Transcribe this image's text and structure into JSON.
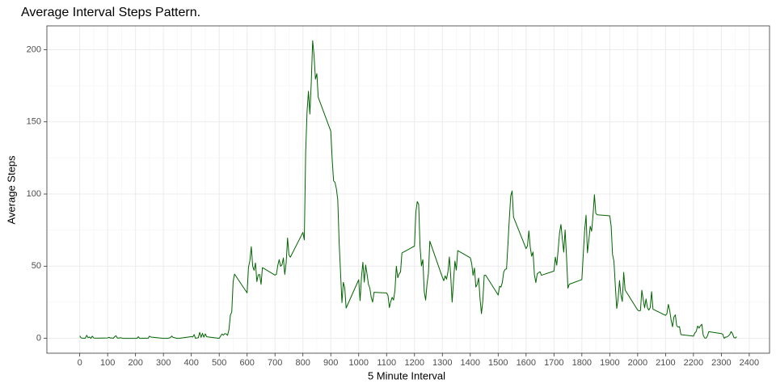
{
  "chart_data": {
    "type": "line",
    "title": "Average Interval Steps Pattern.",
    "x_label": "5 Minute Interval",
    "y_label": "Average Steps",
    "x": [
      0,
      5,
      10,
      15,
      20,
      25,
      30,
      35,
      40,
      45,
      50,
      55,
      100,
      105,
      110,
      115,
      120,
      125,
      130,
      135,
      140,
      145,
      150,
      155,
      200,
      205,
      210,
      215,
      220,
      225,
      230,
      235,
      240,
      245,
      250,
      255,
      300,
      305,
      310,
      315,
      320,
      325,
      330,
      335,
      340,
      345,
      350,
      355,
      400,
      405,
      410,
      415,
      420,
      425,
      430,
      435,
      440,
      445,
      450,
      455,
      500,
      505,
      510,
      515,
      520,
      525,
      530,
      535,
      540,
      545,
      550,
      555,
      600,
      605,
      610,
      615,
      620,
      625,
      630,
      635,
      640,
      645,
      650,
      655,
      700,
      705,
      710,
      715,
      720,
      725,
      730,
      735,
      740,
      745,
      750,
      755,
      800,
      805,
      810,
      815,
      820,
      825,
      830,
      835,
      840,
      845,
      850,
      855,
      900,
      905,
      910,
      915,
      920,
      925,
      930,
      935,
      940,
      945,
      950,
      955,
      1000,
      1005,
      1010,
      1015,
      1020,
      1025,
      1030,
      1035,
      1040,
      1045,
      1050,
      1055,
      1100,
      1105,
      1110,
      1115,
      1120,
      1125,
      1130,
      1135,
      1140,
      1145,
      1150,
      1155,
      1200,
      1205,
      1210,
      1215,
      1220,
      1225,
      1230,
      1235,
      1240,
      1245,
      1250,
      1255,
      1300,
      1305,
      1310,
      1315,
      1320,
      1325,
      1330,
      1335,
      1340,
      1345,
      1350,
      1355,
      1400,
      1405,
      1410,
      1415,
      1420,
      1425,
      1430,
      1435,
      1440,
      1445,
      1450,
      1455,
      1500,
      1505,
      1510,
      1515,
      1520,
      1525,
      1530,
      1535,
      1540,
      1545,
      1550,
      1555,
      1600,
      1605,
      1610,
      1615,
      1620,
      1625,
      1630,
      1635,
      1640,
      1645,
      1650,
      1655,
      1700,
      1705,
      1710,
      1715,
      1720,
      1725,
      1730,
      1735,
      1740,
      1745,
      1750,
      1755,
      1800,
      1805,
      1810,
      1815,
      1820,
      1825,
      1830,
      1835,
      1840,
      1845,
      1850,
      1855,
      1900,
      1905,
      1910,
      1915,
      1920,
      1925,
      1930,
      1935,
      1940,
      1945,
      1950,
      1955,
      2000,
      2005,
      2010,
      2015,
      2020,
      2025,
      2030,
      2035,
      2040,
      2045,
      2050,
      2055,
      2100,
      2105,
      2110,
      2115,
      2120,
      2125,
      2130,
      2135,
      2140,
      2145,
      2150,
      2155,
      2200,
      2205,
      2210,
      2215,
      2220,
      2225,
      2230,
      2235,
      2240,
      2245,
      2250,
      2255,
      2300,
      2305,
      2310,
      2315,
      2320,
      2325,
      2330,
      2335,
      2340,
      2345,
      2350,
      2355
    ],
    "series": [
      {
        "color": "#006400",
        "values": [
          1.7,
          0.3,
          0.1,
          0.15,
          0.08,
          2.1,
          0.5,
          0.9,
          0,
          1.5,
          0.3,
          0.1,
          0.3,
          0.7,
          0.2,
          0.3,
          0,
          1.1,
          1.8,
          0.2,
          0.2,
          0.4,
          0.3,
          0,
          0,
          0,
          1.1,
          0,
          0,
          0.1,
          0,
          0.2,
          0,
          0,
          1.5,
          0.9,
          0,
          0,
          0,
          0,
          0.2,
          0.6,
          1.6,
          0.6,
          0.5,
          0.1,
          0,
          0,
          1.2,
          0.9,
          2.6,
          0,
          0.3,
          0.4,
          4.1,
          0.7,
          3.5,
          0.8,
          3.1,
          1.1,
          0,
          1.6,
          3,
          2.2,
          3.3,
          3,
          2.1,
          6.1,
          16,
          18.3,
          39.5,
          44.5,
          31.5,
          49.3,
          53.8,
          63.5,
          50,
          47.1,
          52.2,
          39.3,
          44,
          44.2,
          37.4,
          49,
          43.8,
          44.4,
          50.5,
          54.5,
          49.9,
          51,
          55.7,
          44.3,
          52.3,
          69.5,
          57.8,
          56.2,
          73.4,
          68.2,
          129.4,
          157.5,
          171.2,
          155.4,
          177.3,
          206.2,
          195.9,
          179.6,
          183.4,
          167,
          143.5,
          124,
          109.1,
          108.1,
          103.7,
          96,
          66.2,
          45.2,
          24.8,
          38.8,
          35,
          21,
          40.6,
          26.1,
          42.4,
          52.7,
          38.9,
          50.8,
          44.3,
          37.4,
          34.7,
          28.3,
          25.1,
          31.9,
          31.4,
          29.7,
          21.3,
          25.5,
          28.4,
          26.5,
          33.4,
          50,
          42,
          44.6,
          46,
          59.2,
          63.9,
          87.7,
          94.8,
          92.8,
          63.4,
          50.2,
          54.5,
          32.4,
          26.5,
          37.7,
          45.1,
          67.3,
          42.3,
          39.9,
          43.3,
          41,
          46.2,
          56.4,
          42.8,
          25.1,
          40,
          53.5,
          47.3,
          60.8,
          55.8,
          52,
          43.6,
          48.7,
          35.5,
          37.5,
          41.8,
          27.5,
          17.1,
          26.1,
          43.6,
          43.8,
          30,
          36.1,
          35.5,
          38.8,
          46,
          47.8,
          48.1,
          65.3,
          82.9,
          98.7,
          102.1,
          84,
          62.1,
          64.1,
          74.5,
          63.2,
          56.9,
          59.8,
          43.9,
          38.6,
          44.7,
          45.5,
          46.2,
          43.7,
          46.6,
          56.3,
          50.7,
          61.2,
          73,
          78.9,
          68.9,
          59.7,
          75.1,
          56.5,
          34.8,
          37.5,
          40.7,
          58,
          74.7,
          85.3,
          59.3,
          67.8,
          77.7,
          74.2,
          85.3,
          99.5,
          86.6,
          85.6,
          84.9,
          77.8,
          58,
          53.4,
          36.3,
          20.7,
          27.4,
          40,
          30.2,
          25.5,
          45.7,
          33.5,
          19.6,
          19,
          19.3,
          33.3,
          26.8,
          21.2,
          27.3,
          21.3,
          19.5,
          21.3,
          32.3,
          20.2,
          15.9,
          17.2,
          23.5,
          19.2,
          12.5,
          8,
          14.7,
          16.3,
          8.7,
          7.8,
          8.1,
          2.6,
          1.5,
          3.7,
          4.8,
          8.5,
          7.1,
          8.7,
          9.75,
          2.2,
          0.3,
          0.1,
          1.6,
          4.6,
          3.3,
          2.8,
          0,
          0.8,
          0.96,
          1.6,
          2.6,
          4.7,
          3.3,
          0.6,
          0.2,
          1.1
        ]
      }
    ],
    "xlim": [
      -117.75,
      2472.75
    ],
    "ylim": [
      -10.3,
      216.5
    ],
    "xticks": [
      0,
      100,
      200,
      300,
      400,
      500,
      600,
      700,
      800,
      900,
      1000,
      1100,
      1200,
      1300,
      1400,
      1500,
      1600,
      1700,
      1800,
      1900,
      2000,
      2100,
      2200,
      2300,
      2400
    ],
    "yticks": [
      0,
      50,
      100,
      150,
      200
    ],
    "grid": true
  }
}
